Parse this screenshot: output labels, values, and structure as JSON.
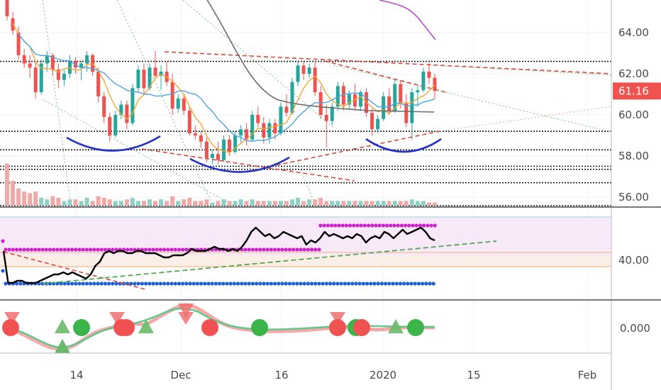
{
  "chart_data": [
    {
      "type": "candlestick",
      "panel": "price",
      "ylim": [
        55.5,
        65.5
      ],
      "yticks": [
        "64.00",
        "62.00",
        "60.00",
        "58.00",
        "56.00"
      ],
      "last_price": "61.16",
      "xticks": [
        "14",
        "Dec",
        "16",
        "2020",
        "15",
        "Feb"
      ],
      "candles": [
        [
          65.6,
          65.8,
          64.6,
          64.8
        ],
        [
          64.7,
          65.0,
          63.9,
          64.1
        ],
        [
          64.0,
          64.3,
          62.7,
          62.9
        ],
        [
          62.9,
          63.2,
          62.3,
          62.5
        ],
        [
          62.5,
          62.9,
          61.8,
          62.3
        ],
        [
          62.3,
          62.6,
          60.8,
          61.1
        ],
        [
          61.1,
          62.7,
          61.0,
          62.5
        ],
        [
          62.5,
          63.1,
          62.1,
          62.9
        ],
        [
          62.9,
          63.0,
          61.9,
          62.2
        ],
        [
          62.2,
          62.5,
          61.3,
          61.7
        ],
        [
          61.7,
          62.2,
          61.4,
          62.0
        ],
        [
          62.0,
          62.9,
          61.8,
          62.6
        ],
        [
          62.6,
          62.8,
          62.0,
          62.3
        ],
        [
          62.3,
          62.6,
          61.7,
          62.5
        ],
        [
          62.5,
          63.1,
          62.1,
          62.9
        ],
        [
          62.9,
          63.0,
          61.9,
          62.1
        ],
        [
          62.1,
          62.3,
          60.6,
          60.9
        ],
        [
          60.9,
          61.1,
          59.6,
          59.9
        ],
        [
          59.9,
          60.1,
          58.7,
          59.0
        ],
        [
          59.0,
          60.2,
          58.9,
          60.0
        ],
        [
          60.0,
          60.7,
          59.8,
          60.5
        ],
        [
          60.5,
          60.7,
          59.3,
          59.6
        ],
        [
          59.6,
          61.5,
          59.5,
          61.3
        ],
        [
          61.3,
          62.4,
          61.1,
          62.2
        ],
        [
          62.2,
          62.5,
          61.0,
          61.3
        ],
        [
          61.3,
          62.5,
          61.2,
          62.3
        ],
        [
          62.3,
          63.1,
          61.8,
          61.9
        ],
        [
          61.9,
          62.4,
          61.2,
          62.1
        ],
        [
          62.1,
          62.6,
          61.4,
          61.6
        ],
        [
          61.6,
          62.0,
          60.0,
          60.3
        ],
        [
          60.3,
          61.0,
          60.1,
          60.8
        ],
        [
          60.8,
          61.0,
          60.0,
          60.2
        ],
        [
          60.2,
          60.4,
          59.0,
          59.1
        ],
        [
          59.1,
          59.5,
          58.8,
          59.0
        ],
        [
          59.0,
          59.2,
          58.4,
          58.7
        ],
        [
          58.7,
          58.9,
          57.7,
          57.9
        ],
        [
          57.9,
          58.3,
          57.6,
          58.1
        ],
        [
          58.1,
          58.7,
          57.6,
          57.8
        ],
        [
          57.8,
          59.0,
          57.7,
          58.8
        ],
        [
          58.8,
          59.0,
          58.0,
          58.2
        ],
        [
          58.2,
          59.2,
          58.1,
          59.0
        ],
        [
          59.0,
          59.5,
          58.6,
          59.3
        ],
        [
          59.3,
          59.6,
          58.5,
          58.8
        ],
        [
          58.8,
          60.2,
          58.7,
          60.0
        ],
        [
          60.0,
          60.4,
          59.4,
          59.6
        ],
        [
          59.6,
          59.9,
          58.6,
          58.9
        ],
        [
          58.9,
          59.8,
          58.6,
          59.6
        ],
        [
          59.6,
          59.8,
          58.8,
          59.1
        ],
        [
          59.1,
          60.6,
          59.0,
          60.4
        ],
        [
          60.4,
          61.0,
          59.9,
          60.1
        ],
        [
          60.1,
          61.8,
          60.0,
          61.6
        ],
        [
          61.6,
          62.6,
          61.4,
          62.4
        ],
        [
          62.4,
          62.6,
          61.7,
          62.0
        ],
        [
          62.0,
          62.5,
          61.8,
          62.3
        ],
        [
          62.3,
          62.6,
          60.9,
          61.1
        ],
        [
          61.1,
          61.4,
          59.8,
          60.0
        ],
        [
          60.0,
          60.5,
          58.4,
          59.7
        ],
        [
          59.7,
          60.6,
          59.5,
          60.4
        ],
        [
          60.4,
          61.6,
          60.2,
          61.4
        ],
        [
          61.4,
          61.6,
          60.2,
          60.5
        ],
        [
          60.5,
          61.2,
          60.3,
          61.0
        ],
        [
          61.0,
          61.5,
          60.2,
          60.4
        ],
        [
          60.4,
          61.2,
          60.2,
          61.1
        ],
        [
          61.1,
          61.3,
          59.9,
          60.1
        ],
        [
          60.1,
          60.3,
          59.0,
          59.3
        ],
        [
          59.3,
          60.0,
          59.1,
          59.8
        ],
        [
          59.8,
          61.1,
          59.7,
          60.9
        ],
        [
          60.9,
          61.3,
          60.0,
          60.2
        ],
        [
          60.2,
          61.7,
          60.1,
          61.5
        ],
        [
          61.5,
          61.7,
          60.3,
          60.6
        ],
        [
          60.6,
          61.0,
          59.4,
          59.6
        ],
        [
          59.6,
          61.3,
          58.8,
          61.1
        ],
        [
          61.1,
          61.4,
          60.4,
          61.2
        ],
        [
          61.2,
          62.3,
          61.1,
          62.1
        ],
        [
          62.1,
          62.5,
          61.5,
          61.8
        ],
        [
          61.8,
          62.0,
          60.8,
          61.16
        ]
      ],
      "volume": [
        2.7,
        1.6,
        1.1,
        0.9,
        0.8,
        0.9,
        0.5,
        0.4,
        0.6,
        0.5,
        0.3,
        0.4,
        0.4,
        0.3,
        0.5,
        0.3,
        0.6,
        0.5,
        0.4,
        0.3,
        0.3,
        0.4,
        0.5,
        0.3,
        0.3,
        0.4,
        0.3,
        0.4,
        0.3,
        0.6,
        0.3,
        0.4,
        0.5,
        0.3,
        0.3,
        0.4,
        0.2,
        0.3,
        0.4,
        0.3,
        0.3,
        0.4,
        0.3,
        0.4,
        0.3,
        0.3,
        0.3,
        0.3,
        0.3,
        0.3,
        0.4,
        0.5,
        0.3,
        0.4,
        0.4,
        0.5,
        0.3,
        0.3,
        0.3,
        0.3,
        0.3,
        0.3,
        0.3,
        0.3,
        0.3,
        0.3,
        0.3,
        0.3,
        0.3,
        0.3,
        0.3,
        0.4,
        0.3,
        0.3,
        0.2,
        0.2
      ],
      "support_resistance_levels": [
        62.6,
        59.2,
        58.3,
        57.5,
        56.7,
        55.5
      ],
      "patterns": [
        "rounded bottom",
        "rounded bottom",
        "rounded bottom"
      ]
    },
    {
      "type": "line",
      "panel": "oscillator",
      "ylim": [
        25,
        60
      ],
      "yticks": [
        "40.00"
      ],
      "series": [
        {
          "values": [
            44,
            29,
            29,
            30,
            30,
            29,
            29,
            29,
            30,
            31,
            32,
            33,
            33,
            34,
            33,
            34,
            33,
            32,
            31,
            33,
            37,
            39,
            43,
            44,
            43,
            44,
            44,
            43,
            43,
            44,
            44,
            43,
            43,
            43,
            42,
            41,
            41,
            42,
            42,
            42,
            43,
            45,
            44,
            44,
            44,
            45,
            46,
            45,
            45,
            44,
            45,
            44,
            46,
            49,
            53,
            55,
            53,
            51,
            52,
            50,
            51,
            53,
            52,
            51,
            50,
            51,
            47,
            49,
            48,
            50,
            53,
            51,
            52,
            51,
            50,
            51,
            50,
            52,
            51,
            48,
            50,
            51,
            50,
            53,
            52,
            50,
            52,
            54,
            52,
            53,
            54,
            55,
            53,
            50,
            49
          ]
        }
      ]
    },
    {
      "type": "line",
      "panel": "momentum",
      "yticks": [
        "0.000"
      ],
      "signals": [
        "down",
        "up",
        "up",
        "down",
        "down",
        "up",
        "up",
        "down",
        "up",
        "down",
        "down",
        "up",
        "up",
        "down",
        "down",
        "down",
        "up",
        "up",
        "up"
      ]
    }
  ]
}
